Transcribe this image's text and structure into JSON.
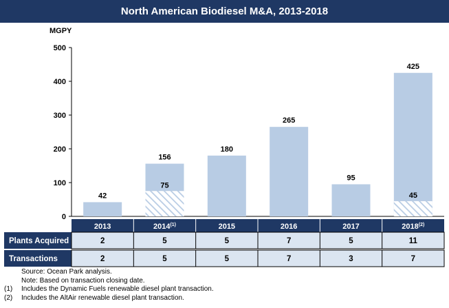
{
  "title": "North American Biodiesel M&A, 2013-2018",
  "unit": "MGPY",
  "chart_data": {
    "type": "bar",
    "title": "North American Biodiesel M&A, 2013-2018",
    "ylabel": "MGPY",
    "xlabel": "",
    "ylim": [
      0,
      500
    ],
    "yticks": [
      "0",
      "100",
      "200",
      "300",
      "400",
      "500"
    ],
    "grid": false,
    "categories": [
      {
        "label": "2013",
        "sup": ""
      },
      {
        "label": "2014",
        "sup": "(1)"
      },
      {
        "label": "2015",
        "sup": ""
      },
      {
        "label": "2016",
        "sup": ""
      },
      {
        "label": "2017",
        "sup": ""
      },
      {
        "label": "2018",
        "sup": "(2)"
      }
    ],
    "values": [
      42,
      156,
      180,
      265,
      95,
      425
    ],
    "renewable_diesel_values": [
      null,
      75,
      null,
      null,
      null,
      45
    ],
    "colors": {
      "bar": "#b8cce4",
      "hatch": "#b8cce4",
      "header": "#1f3864",
      "row": "#dbe5f1",
      "text": "#ffffff"
    }
  },
  "table": {
    "rows": [
      {
        "label": "Plants Acquired",
        "values": [
          "2",
          "5",
          "5",
          "7",
          "5",
          "11"
        ]
      },
      {
        "label": "Transactions",
        "values": [
          "2",
          "5",
          "5",
          "7",
          "3",
          "7"
        ]
      }
    ]
  },
  "notes": [
    {
      "mark": "",
      "text": "Source: Ocean Park analysis."
    },
    {
      "mark": "",
      "text": "Note: Based on transaction closing date."
    },
    {
      "mark": "(1)",
      "text": "Includes the Dynamic Fuels renewable diesel plant transaction."
    },
    {
      "mark": "(2)",
      "text": "Includes the AltAir renewable diesel plant transaction."
    }
  ]
}
